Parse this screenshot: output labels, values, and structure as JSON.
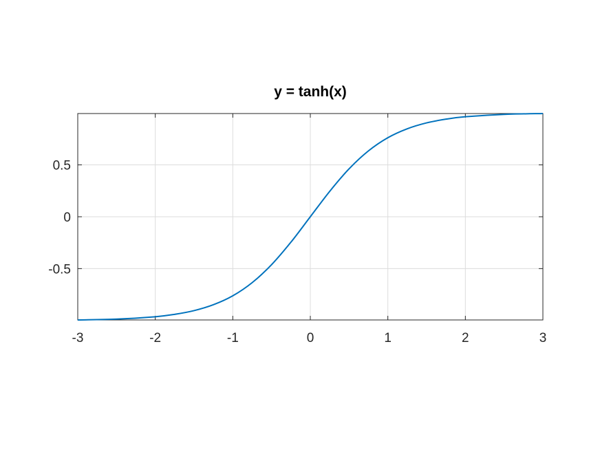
{
  "chart_data": {
    "type": "line",
    "title": "y = tanh(x)",
    "xlabel": "",
    "ylabel": "",
    "xlim": [
      -3,
      3
    ],
    "ylim": [
      -0.99505,
      0.99505
    ],
    "x_ticks": [
      -3,
      -2,
      -1,
      0,
      1,
      2,
      3
    ],
    "x_tick_labels": [
      "-3",
      "-2",
      "-1",
      "0",
      "1",
      "2",
      "3"
    ],
    "y_ticks": [
      -0.5,
      0,
      0.5
    ],
    "y_tick_labels": [
      "-0.5",
      "0",
      "0.5"
    ],
    "grid": true,
    "line_color": "#0072BD",
    "series": [
      {
        "x": [
          -3,
          -2.5,
          -2,
          -1.75,
          -1.5,
          -1.25,
          -1,
          -0.75,
          -0.5,
          -0.25,
          0,
          0.25,
          0.5,
          0.75,
          1,
          1.25,
          1.5,
          1.75,
          2,
          2.5,
          3
        ],
        "y": [
          -0.995,
          -0.987,
          -0.964,
          -0.941,
          -0.905,
          -0.848,
          -0.762,
          -0.635,
          -0.462,
          -0.245,
          0,
          0.245,
          0.462,
          0.635,
          0.762,
          0.848,
          0.905,
          0.941,
          0.964,
          0.987,
          0.995
        ]
      }
    ]
  }
}
